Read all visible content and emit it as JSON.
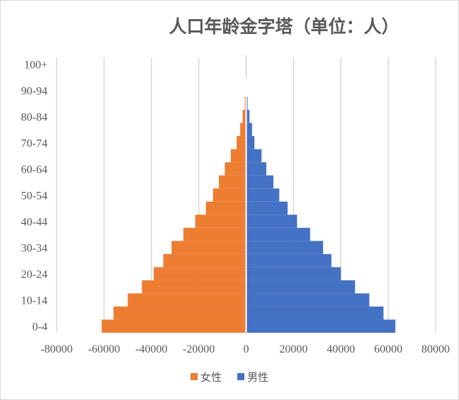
{
  "chart_data": {
    "type": "bar",
    "orientation": "horizontal",
    "stacked": true,
    "title": "人口年龄金字塔（单位：人）",
    "categories": [
      "0-4",
      "5-9",
      "10-14",
      "15-19",
      "20-24",
      "25-29",
      "30-34",
      "35-39",
      "40-44",
      "45-49",
      "50-54",
      "55-59",
      "60-64",
      "65-69",
      "70-74",
      "75-79",
      "80-84",
      "85-89",
      "90-94",
      "95-99",
      "100+"
    ],
    "category_tick_labels": [
      "0-4",
      "10-14",
      "20-24",
      "30-34",
      "40-44",
      "50-54",
      "60-64",
      "70-74",
      "80-84",
      "90-94",
      "100+"
    ],
    "series": [
      {
        "name": "女性",
        "color": "#ED7D31",
        "values": [
          -61000,
          -56000,
          -50000,
          -44000,
          -39000,
          -35000,
          -31500,
          -26500,
          -21500,
          -17000,
          -14000,
          -11500,
          -9000,
          -6500,
          -4000,
          -2500,
          -1500,
          -600,
          -300,
          -100,
          -50
        ]
      },
      {
        "name": "男性",
        "color": "#4472C4",
        "values": [
          63000,
          58000,
          52000,
          46000,
          40000,
          36000,
          32500,
          27000,
          21500,
          17500,
          14000,
          11500,
          8500,
          6500,
          3500,
          2500,
          1400,
          600,
          250,
          100,
          50
        ]
      }
    ],
    "xlim": [
      -80000,
      80000
    ],
    "x_ticks": [
      -80000,
      -60000,
      -40000,
      -20000,
      0,
      20000,
      40000,
      60000,
      80000
    ],
    "x_tick_labels": [
      "-80000",
      "-60000",
      "-40000",
      "-20000",
      "0",
      "20000",
      "40000",
      "60000",
      "80000"
    ],
    "xlabel": "",
    "ylabel": "",
    "grid": "vertical",
    "legend_position": "bottom",
    "gridline_color": "#d9d9d9",
    "axis_color": "#bfbfbf"
  }
}
